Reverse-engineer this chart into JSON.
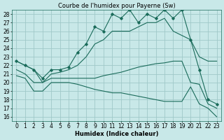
{
  "title": "Courbe de l'humidex pour Payerne (Sw)",
  "xlabel": "Humidex (Indice chaleur)",
  "xlim": [
    -0.5,
    23.5
  ],
  "ylim": [
    15.5,
    28.5
  ],
  "yticks": [
    16,
    17,
    18,
    19,
    20,
    21,
    22,
    23,
    24,
    25,
    26,
    27,
    28
  ],
  "xticks": [
    0,
    1,
    2,
    3,
    4,
    5,
    6,
    7,
    8,
    9,
    10,
    11,
    12,
    13,
    14,
    15,
    16,
    17,
    18,
    19,
    20,
    21,
    22,
    23
  ],
  "bg_color": "#c8e8e8",
  "grid_color": "#a0c8c8",
  "line_color": "#1a6b5a",
  "line1": [
    22.5,
    22.0,
    21.5,
    20.0,
    21.0,
    21.2,
    21.5,
    22.0,
    23.0,
    24.5,
    25.0,
    26.0,
    26.0,
    26.0,
    26.5,
    27.0,
    27.0,
    27.5,
    26.0,
    25.5,
    25.0,
    23.0,
    22.5,
    22.5
  ],
  "line2": [
    22.5,
    22.0,
    21.5,
    20.5,
    21.5,
    21.5,
    21.8,
    23.5,
    24.5,
    26.5,
    26.0,
    28.0,
    27.5,
    28.5,
    27.0,
    28.0,
    27.5,
    28.5,
    27.5,
    28.5,
    25.0,
    21.5,
    18.0,
    17.5
  ],
  "line3": [
    21.5,
    21.0,
    20.0,
    20.0,
    20.5,
    20.5,
    20.5,
    20.5,
    20.5,
    20.5,
    20.8,
    21.0,
    21.2,
    21.5,
    21.8,
    22.0,
    22.2,
    22.3,
    22.5,
    22.5,
    20.0,
    19.8,
    17.5,
    17.0
  ],
  "line4": [
    20.8,
    20.5,
    19.0,
    19.0,
    20.0,
    20.0,
    20.0,
    19.8,
    19.5,
    19.2,
    19.0,
    18.8,
    18.8,
    18.6,
    18.4,
    18.2,
    18.0,
    17.8,
    17.8,
    17.8,
    19.5,
    17.5,
    17.0,
    16.0
  ],
  "fontsize_title": 6,
  "fontsize_axis": 6,
  "fontsize_tick": 5.5
}
